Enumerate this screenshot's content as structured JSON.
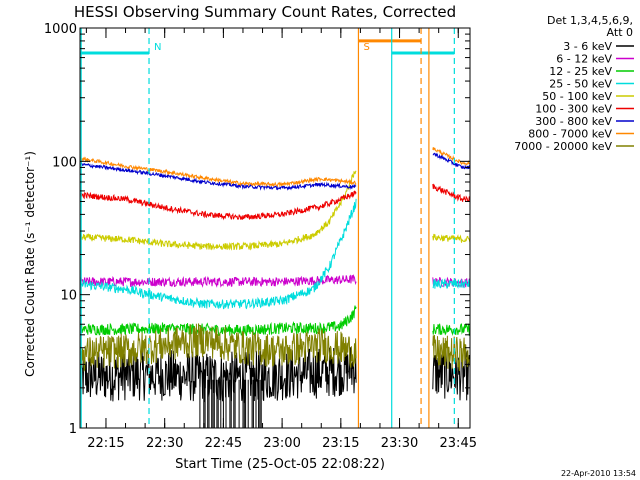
{
  "chart_data": {
    "type": "line",
    "title": "HESSI Observing Summary Count Rates, Corrected",
    "xlabel": "Start Time (25-Oct-05 22:08:22)",
    "ylabel": "Corrected Count Rate (s⁻¹ detector⁻¹)",
    "yscale": "log",
    "ylim": [
      1,
      1000
    ],
    "y_ticks": [
      1,
      10,
      100,
      1000
    ],
    "y_tick_labels": [
      "1",
      "10",
      "100",
      "1000"
    ],
    "xlim": [
      "22:08:22",
      "23:48:00"
    ],
    "x_ticks": [
      "22:15",
      "22:30",
      "22:45",
      "23:00",
      "23:15",
      "23:30",
      "23:45"
    ],
    "grid": false,
    "legend_title": "Det 1,3,4,5,6,9,\nAtt 0",
    "legend_position": "right",
    "date_stamp": "22-Apr-2010 13:54",
    "data_gap": {
      "start": "23:19:00",
      "end": "23:38:30"
    },
    "series": [
      {
        "name": "3 - 6 keV",
        "color": "#000000",
        "noise": 0.45,
        "x": [
          "22:08:22",
          "22:20",
          "22:30",
          "22:40",
          "22:50",
          "23:00",
          "23:10",
          "23:18",
          "23:38:30",
          "23:46"
        ],
        "values": [
          2.4,
          2.5,
          2.5,
          2.4,
          2.4,
          2.5,
          2.6,
          2.8,
          2.6,
          2.5
        ]
      },
      {
        "name": "6 - 12 keV",
        "color": "#cc00cc",
        "noise": 0.08,
        "x": [
          "22:08:22",
          "22:20",
          "22:30",
          "22:40",
          "22:50",
          "23:00",
          "23:10",
          "23:18",
          "23:38:30",
          "23:46"
        ],
        "values": [
          12.5,
          12.5,
          12.5,
          12.5,
          12.5,
          12.5,
          12.8,
          13,
          12.5,
          12.3
        ]
      },
      {
        "name": "12 - 25 keV",
        "color": "#00cc00",
        "noise": 0.1,
        "x": [
          "22:08:22",
          "22:20",
          "22:30",
          "22:40",
          "22:50",
          "23:00",
          "23:10",
          "23:15",
          "23:18",
          "23:20",
          "23:38:30",
          "23:46"
        ],
        "values": [
          5.5,
          5.5,
          5.6,
          5.5,
          5.4,
          5.6,
          5.6,
          5.8,
          7,
          9,
          5.5,
          5.5
        ]
      },
      {
        "name": "25 - 50 keV",
        "color": "#00dddd",
        "noise": 0.08,
        "x": [
          "22:08:22",
          "22:20",
          "22:30",
          "22:40",
          "22:50",
          "23:00",
          "23:08",
          "23:12",
          "23:16",
          "23:19",
          "23:38:30",
          "23:46"
        ],
        "values": [
          12,
          11,
          9.5,
          8.5,
          8.5,
          9,
          11,
          16,
          30,
          50,
          12,
          12
        ]
      },
      {
        "name": "50 - 100 keV",
        "color": "#cccc00",
        "noise": 0.06,
        "x": [
          "22:08:22",
          "22:20",
          "22:30",
          "22:40",
          "22:50",
          "23:00",
          "23:08",
          "23:12",
          "23:16",
          "23:19",
          "23:38:30",
          "23:46"
        ],
        "values": [
          27,
          26,
          24,
          23,
          23,
          24,
          28,
          35,
          55,
          90,
          27,
          26
        ]
      },
      {
        "name": "100 - 300 keV",
        "color": "#ee0000",
        "noise": 0.05,
        "x": [
          "22:08:22",
          "22:20",
          "22:30",
          "22:40",
          "22:50",
          "23:00",
          "23:10",
          "23:15",
          "23:19",
          "23:38:30",
          "23:46"
        ],
        "values": [
          56,
          52,
          45,
          40,
          38,
          40,
          46,
          52,
          58,
          65,
          52
        ]
      },
      {
        "name": "300 - 800 keV",
        "color": "#0000cc",
        "noise": 0.03,
        "x": [
          "22:08:22",
          "22:20",
          "22:30",
          "22:40",
          "22:50",
          "23:00",
          "23:10",
          "23:19",
          "23:38:30",
          "23:46"
        ],
        "values": [
          95,
          86,
          78,
          70,
          65,
          63,
          67,
          64,
          115,
          90
        ]
      },
      {
        "name": "800 - 7000 keV",
        "color": "#ff8800",
        "noise": 0.03,
        "x": [
          "22:08:22",
          "22:20",
          "22:30",
          "22:40",
          "22:50",
          "23:00",
          "23:10",
          "23:19",
          "23:38:30",
          "23:46"
        ],
        "values": [
          105,
          92,
          84,
          75,
          68,
          67,
          74,
          69,
          125,
          97
        ]
      },
      {
        "name": "7000 - 20000 keV",
        "color": "#808000",
        "noise": 0.3,
        "x": [
          "22:08:22",
          "22:20",
          "22:30",
          "22:40",
          "22:50",
          "23:00",
          "23:10",
          "23:18",
          "23:38:30",
          "23:46"
        ],
        "values": [
          3.6,
          3.8,
          4.2,
          4.6,
          4.0,
          3.8,
          4.2,
          3.8,
          3.7,
          3.6
        ]
      }
    ],
    "eclipse_bars": [
      {
        "start": "22:08:22",
        "end": "22:26:00",
        "level": 650,
        "color": "#00dddd"
      },
      {
        "start": "23:28:00",
        "end": "23:44:00",
        "level": 650,
        "color": "#00dddd"
      },
      {
        "start": "23:19:30",
        "end": "23:35:30",
        "level": 800,
        "color": "#ff8800"
      }
    ],
    "vertical_lines": [
      {
        "time": "22:08:40",
        "style": "solid",
        "color": "#00dddd"
      },
      {
        "time": "22:26:00",
        "style": "dashed",
        "color": "#00dddd",
        "label": "N"
      },
      {
        "time": "23:28:00",
        "style": "solid",
        "color": "#00dddd"
      },
      {
        "time": "23:44:00",
        "style": "dashed",
        "color": "#00dddd"
      },
      {
        "time": "23:19:30",
        "style": "solid",
        "color": "#ff8800",
        "label": "S"
      },
      {
        "time": "23:35:30",
        "style": "dashed",
        "color": "#ff8800"
      },
      {
        "time": "23:37:30",
        "style": "solid",
        "color": "#ff8800"
      }
    ],
    "colors": {
      "text": "#000000",
      "axes": "#000000",
      "background": "#ffffff"
    }
  }
}
